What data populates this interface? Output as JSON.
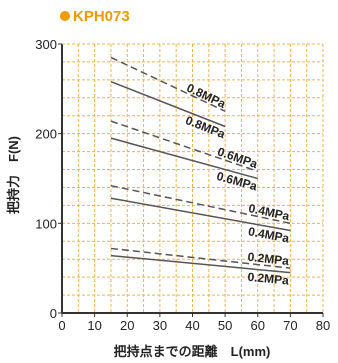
{
  "title": "KPH073",
  "chart_data": {
    "type": "line",
    "title": "KPH073",
    "xlabel": "把持点までの距離　L(mm)",
    "ylabel": "把持力　F(N)",
    "xlim": [
      0,
      80
    ],
    "ylim": [
      0,
      300
    ],
    "xticks": [
      "0",
      "10",
      "20",
      "30",
      "40",
      "50",
      "60",
      "70",
      "80"
    ],
    "yticks": [
      "0",
      "100",
      "200",
      "300"
    ],
    "grid": true,
    "colors": {
      "grid": "#f4b14a",
      "solid": "#555555",
      "dashed": "#555555",
      "accent": "#f39800"
    },
    "series": [
      {
        "name": "0.8MPa",
        "style": "dashed",
        "x": [
          15,
          50
        ],
        "y": [
          285,
          225
        ]
      },
      {
        "name": "0.8MPa",
        "style": "solid",
        "x": [
          15,
          50
        ],
        "y": [
          258,
          208
        ]
      },
      {
        "name": "0.6MPa",
        "style": "dashed",
        "x": [
          15,
          60
        ],
        "y": [
          214,
          158
        ]
      },
      {
        "name": "0.6MPa",
        "style": "solid",
        "x": [
          15,
          60
        ],
        "y": [
          195,
          150
        ]
      },
      {
        "name": "0.4MPa",
        "style": "dashed",
        "x": [
          15,
          70
        ],
        "y": [
          142,
          100
        ]
      },
      {
        "name": "0.4MPa",
        "style": "solid",
        "x": [
          15,
          70
        ],
        "y": [
          128,
          92
        ]
      },
      {
        "name": "0.2MPa",
        "style": "dashed",
        "x": [
          15,
          70
        ],
        "y": [
          72,
          50
        ]
      },
      {
        "name": "0.2MPa",
        "style": "solid",
        "x": [
          15,
          70
        ],
        "y": [
          64,
          45
        ]
      }
    ]
  }
}
